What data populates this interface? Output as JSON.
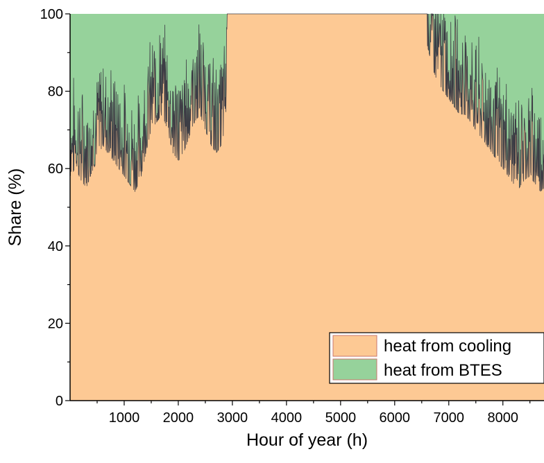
{
  "chart_data": {
    "type": "area",
    "stacked": true,
    "xlabel": "Hour of year (h)",
    "ylabel": "Share (%)",
    "xlim": [
      0,
      8760
    ],
    "ylim": [
      0,
      100
    ],
    "x_ticks": [
      1000,
      2000,
      3000,
      4000,
      5000,
      6000,
      7000,
      8000
    ],
    "y_ticks": [
      0,
      20,
      40,
      60,
      80,
      100
    ],
    "grid": false,
    "legend_position": "bottom-right",
    "series": [
      {
        "name": "heat from cooling",
        "color": "#FDC994",
        "x": [
          0,
          100,
          200,
          300,
          400,
          500,
          600,
          700,
          800,
          900,
          1000,
          1100,
          1200,
          1300,
          1400,
          1500,
          1600,
          1700,
          1800,
          1900,
          2000,
          2100,
          2200,
          2300,
          2400,
          2500,
          2600,
          2700,
          2800,
          2880,
          2900,
          6600,
          6700,
          6800,
          6900,
          7000,
          7100,
          7200,
          7300,
          7400,
          7500,
          7600,
          7700,
          7800,
          7900,
          8000,
          8100,
          8200,
          8300,
          8400,
          8500,
          8600,
          8700,
          8760
        ],
        "values": [
          66,
          68,
          65,
          63,
          67,
          70,
          74,
          72,
          70,
          68,
          66,
          64,
          62,
          65,
          72,
          78,
          80,
          82,
          78,
          72,
          70,
          72,
          76,
          80,
          82,
          78,
          74,
          72,
          74,
          80,
          100,
          100,
          94,
          90,
          88,
          86,
          84,
          82,
          82,
          80,
          78,
          76,
          74,
          72,
          70,
          68,
          66,
          64,
          63,
          65,
          66,
          64,
          62,
          63
        ]
      },
      {
        "name": "heat from BTES",
        "color": "#96D29B",
        "x": [
          0,
          100,
          200,
          300,
          400,
          500,
          600,
          700,
          800,
          900,
          1000,
          1100,
          1200,
          1300,
          1400,
          1500,
          1600,
          1700,
          1800,
          1900,
          2000,
          2100,
          2200,
          2300,
          2400,
          2500,
          2600,
          2700,
          2800,
          2880,
          2900,
          6600,
          6700,
          6800,
          6900,
          7000,
          7100,
          7200,
          7300,
          7400,
          7500,
          7600,
          7700,
          7800,
          7900,
          8000,
          8100,
          8200,
          8300,
          8400,
          8500,
          8600,
          8700,
          8760
        ],
        "values": [
          34,
          32,
          35,
          37,
          33,
          30,
          26,
          28,
          30,
          32,
          34,
          36,
          38,
          35,
          28,
          22,
          20,
          18,
          22,
          28,
          30,
          28,
          24,
          20,
          18,
          22,
          26,
          28,
          26,
          20,
          0,
          0,
          6,
          10,
          12,
          14,
          16,
          18,
          18,
          20,
          22,
          24,
          26,
          28,
          30,
          32,
          34,
          36,
          37,
          35,
          34,
          36,
          38,
          37
        ]
      }
    ]
  }
}
